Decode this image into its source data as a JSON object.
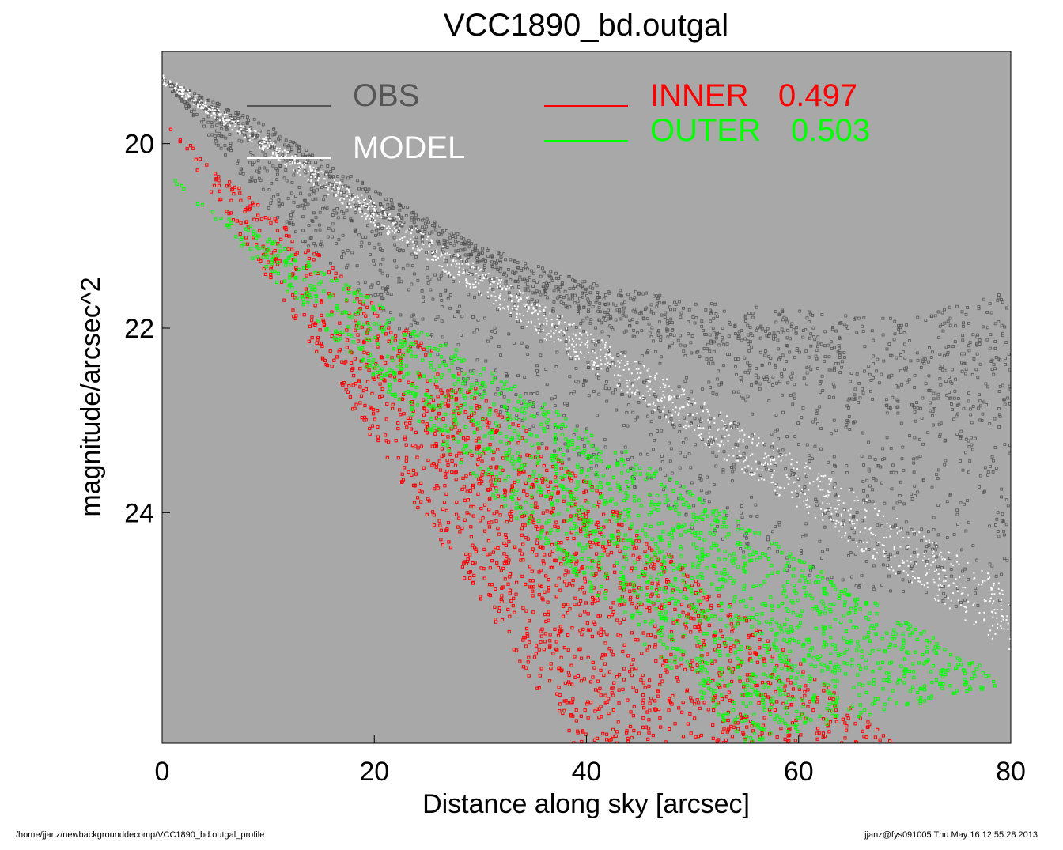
{
  "chart_data": {
    "type": "scatter",
    "title": "VCC1890_bd.outgal",
    "xlabel": "Distance along sky [arcsec]",
    "ylabel": "magnitude/arcsec^2",
    "xlim": [
      0,
      80
    ],
    "ylim": [
      19.0,
      26.5
    ],
    "y_inverted": true,
    "x_ticks": [
      0,
      20,
      40,
      60,
      80
    ],
    "y_ticks": [
      20,
      22,
      24
    ],
    "background_color": "#a8a8a8",
    "grid": false,
    "legend_placement": "top",
    "series": [
      {
        "name": "OBS",
        "color": "#555555",
        "x": [
          0,
          10,
          20,
          30,
          40,
          50,
          60,
          70,
          80
        ],
        "y": [
          19.3,
          20.1,
          20.8,
          21.4,
          21.9,
          22.3,
          22.7,
          22.9,
          23.0
        ],
        "scatter_low": [
          0,
          0.6,
          1.0,
          1.4,
          1.7,
          1.9,
          2.0,
          2.0,
          2.2
        ],
        "scatter_high": [
          0,
          0.3,
          0.3,
          0.3,
          0.4,
          0.6,
          0.9,
          1.0,
          1.4
        ]
      },
      {
        "name": "MODEL",
        "color": "#ffffff",
        "x": [
          0,
          80
        ],
        "y_upper": [
          19.25,
          24.8
        ],
        "y_lower": [
          19.35,
          25.5
        ]
      },
      {
        "name": "INNER",
        "label_value": "0.497",
        "color": "#ff0000",
        "x": [
          0.5,
          38.5,
          53,
          69
        ],
        "y": [
          19.8,
          26.5,
          26.5,
          26.5
        ],
        "band_upper": [
          [
            0.5,
            19.8
          ],
          [
            69,
            26.5
          ]
        ],
        "band_lower": [
          [
            0.5,
            19.8
          ],
          [
            38.5,
            26.5
          ]
        ]
      },
      {
        "name": "OUTER",
        "label_value": "0.503",
        "color": "#00ff00",
        "x": [
          0.5,
          55,
          80
        ],
        "band_upper": [
          [
            0.5,
            20.35
          ],
          [
            80,
            25.85
          ]
        ],
        "band_lower": [
          [
            0.5,
            20.35
          ],
          [
            55,
            26.5
          ]
        ]
      }
    ]
  },
  "legend": {
    "obs_label": "OBS",
    "model_label": "MODEL",
    "inner_label": "INNER",
    "inner_value": "0.497",
    "outer_label": "OUTER",
    "outer_value": "0.503"
  },
  "footer": {
    "left": "/home/jjanz/newbackgrounddecomp/VCC1890_bd.outgal_profile",
    "right": "jjanz@fys091005  Thu May 16 12:55:28 2013"
  }
}
